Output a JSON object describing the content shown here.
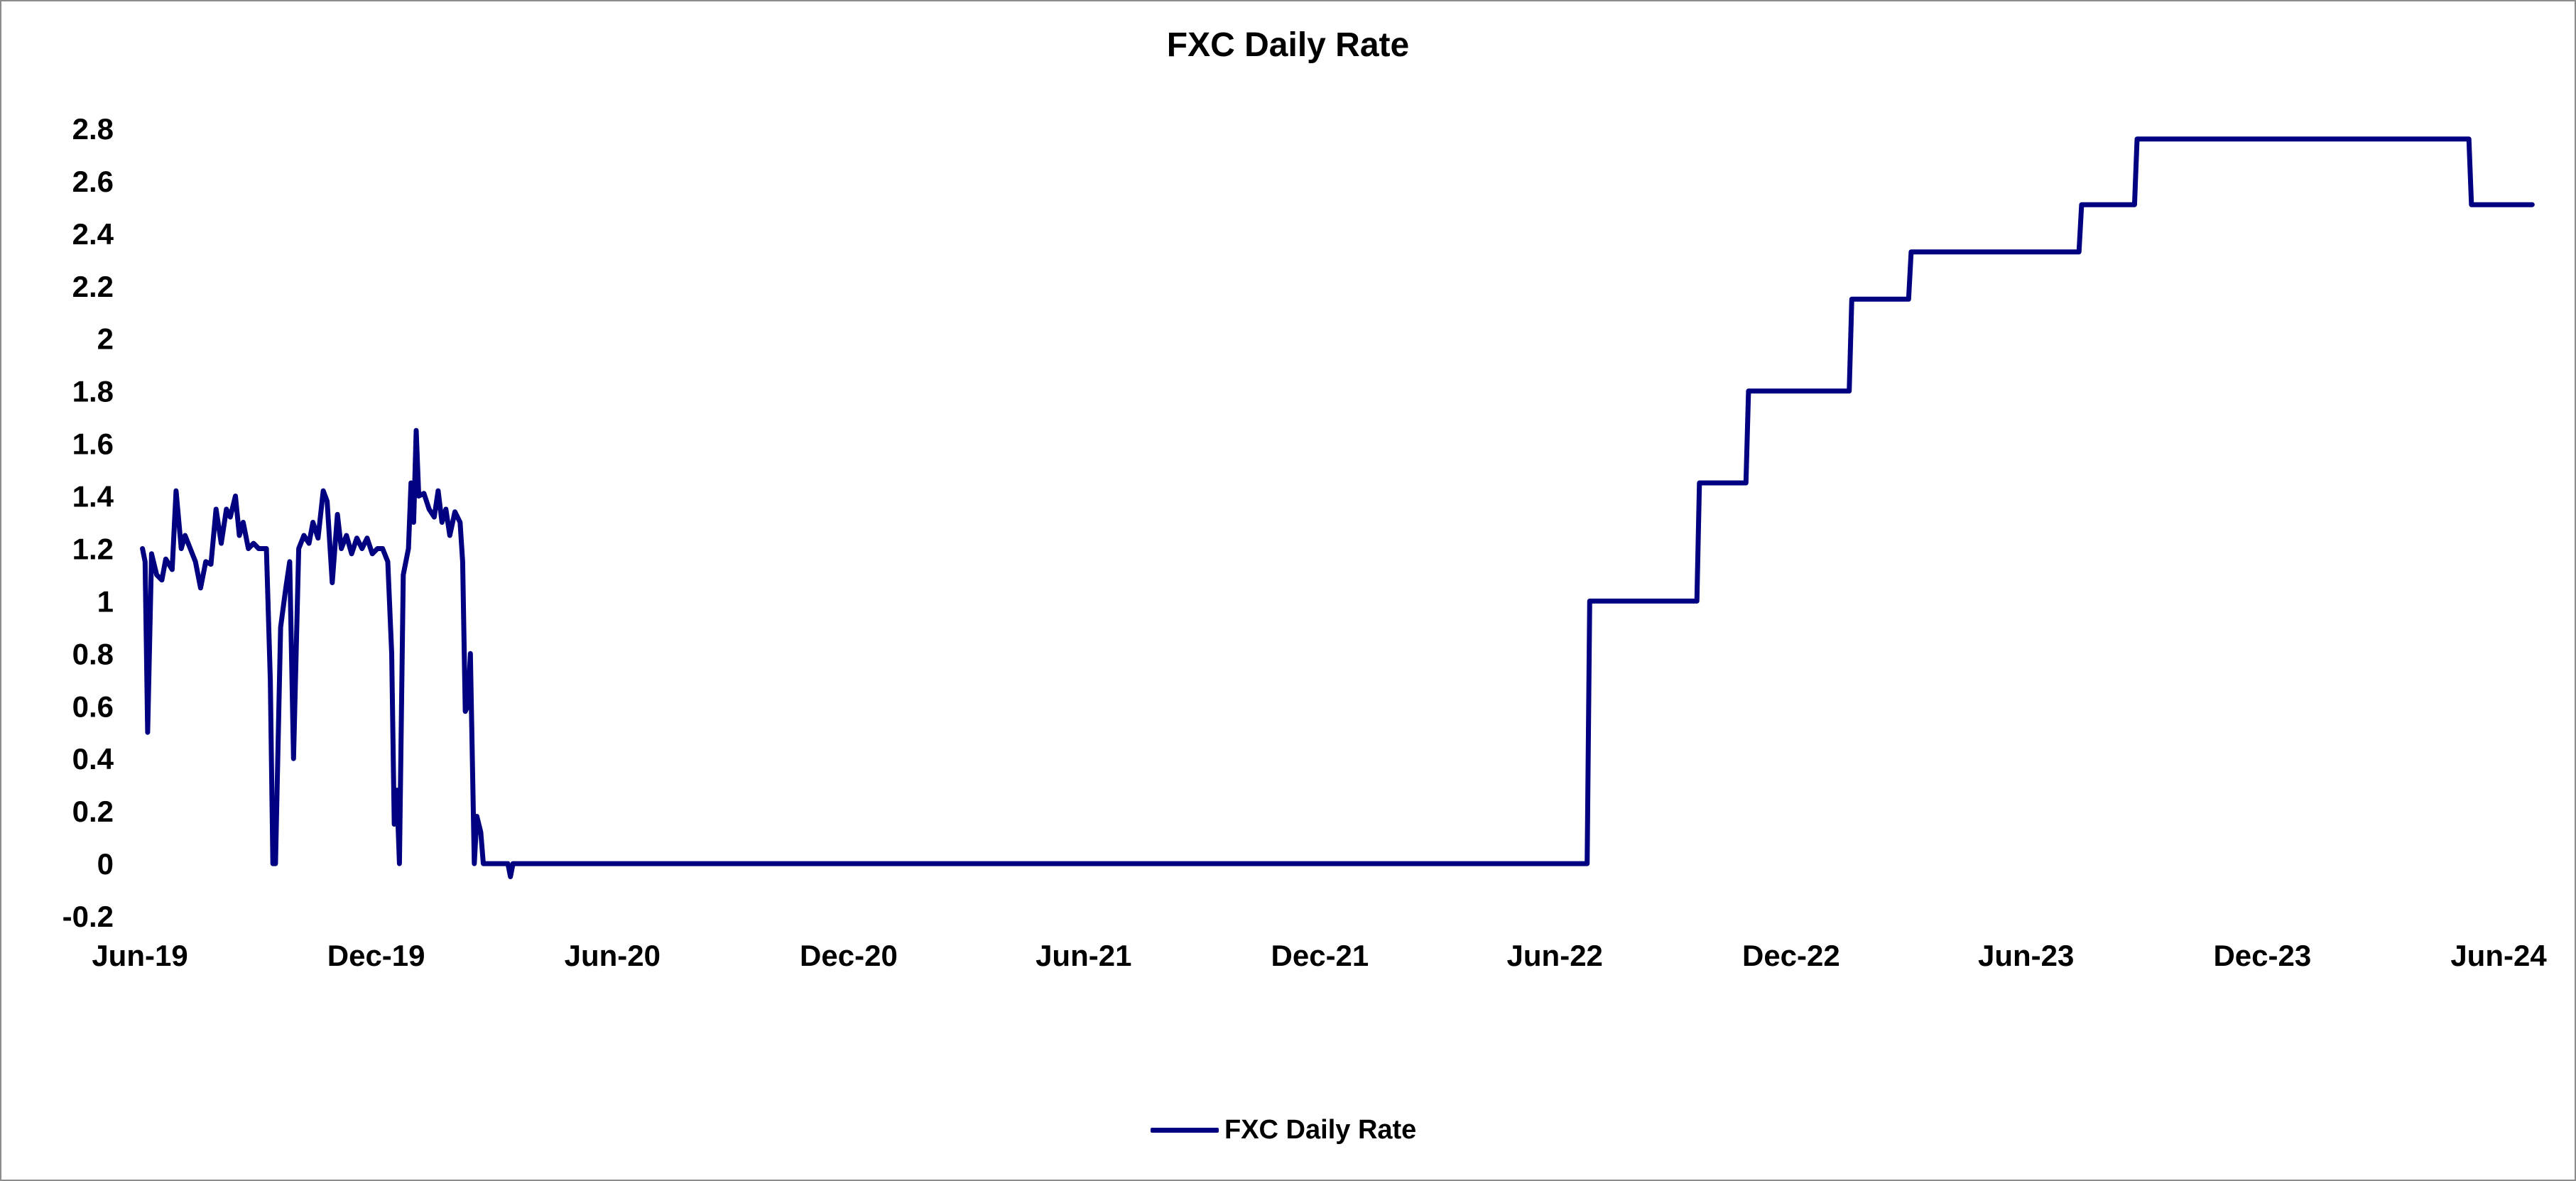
{
  "chart_data": {
    "type": "line",
    "title": "FXC Daily Rate",
    "xlabel": "",
    "ylabel": "",
    "x_tick_labels": [
      "Jun-19",
      "Dec-19",
      "Jun-20",
      "Dec-20",
      "Jun-21",
      "Dec-21",
      "Jun-22",
      "Dec-22",
      "Jun-23",
      "Dec-23",
      "Jun-24"
    ],
    "y_tick_labels": [
      "-0.2",
      "0",
      "0.2",
      "0.4",
      "0.6",
      "0.8",
      "1",
      "1.2",
      "1.4",
      "1.6",
      "1.8",
      "2",
      "2.2",
      "2.4",
      "2.6",
      "2.8"
    ],
    "xlim": [
      "2019-06",
      "2024-06"
    ],
    "ylim": [
      -0.2,
      2.9
    ],
    "grid": false,
    "legend_position": "bottom-center",
    "series": [
      {
        "name": "FXC Daily Rate",
        "color": "#000080",
        "points": [
          [
            "2019-06-03",
            1.2
          ],
          [
            "2019-06-05",
            1.15
          ],
          [
            "2019-06-07",
            0.5
          ],
          [
            "2019-06-10",
            1.18
          ],
          [
            "2019-06-14",
            1.1
          ],
          [
            "2019-06-18",
            1.08
          ],
          [
            "2019-06-21",
            1.16
          ],
          [
            "2019-06-26",
            1.12
          ],
          [
            "2019-06-29",
            1.42
          ],
          [
            "2019-07-03",
            1.2
          ],
          [
            "2019-07-06",
            1.25
          ],
          [
            "2019-07-10",
            1.2
          ],
          [
            "2019-07-14",
            1.15
          ],
          [
            "2019-07-18",
            1.05
          ],
          [
            "2019-07-22",
            1.15
          ],
          [
            "2019-07-26",
            1.14
          ],
          [
            "2019-07-30",
            1.35
          ],
          [
            "2019-08-03",
            1.22
          ],
          [
            "2019-08-07",
            1.35
          ],
          [
            "2019-08-10",
            1.32
          ],
          [
            "2019-08-14",
            1.4
          ],
          [
            "2019-08-17",
            1.25
          ],
          [
            "2019-08-20",
            1.3
          ],
          [
            "2019-08-24",
            1.2
          ],
          [
            "2019-08-28",
            1.22
          ],
          [
            "2019-09-01",
            1.2
          ],
          [
            "2019-09-07",
            1.2
          ],
          [
            "2019-09-10",
            0.7
          ],
          [
            "2019-09-12",
            0.0
          ],
          [
            "2019-09-14",
            0.0
          ],
          [
            "2019-09-18",
            0.9
          ],
          [
            "2019-09-22",
            1.05
          ],
          [
            "2019-09-25",
            1.15
          ],
          [
            "2019-09-28",
            0.4
          ],
          [
            "2019-10-02",
            1.2
          ],
          [
            "2019-10-06",
            1.25
          ],
          [
            "2019-10-10",
            1.22
          ],
          [
            "2019-10-13",
            1.3
          ],
          [
            "2019-10-17",
            1.24
          ],
          [
            "2019-10-21",
            1.42
          ],
          [
            "2019-10-24",
            1.38
          ],
          [
            "2019-10-28",
            1.07
          ],
          [
            "2019-11-01",
            1.33
          ],
          [
            "2019-11-04",
            1.2
          ],
          [
            "2019-11-08",
            1.25
          ],
          [
            "2019-11-12",
            1.18
          ],
          [
            "2019-11-16",
            1.24
          ],
          [
            "2019-11-20",
            1.2
          ],
          [
            "2019-11-24",
            1.24
          ],
          [
            "2019-11-28",
            1.18
          ],
          [
            "2019-12-02",
            1.2
          ],
          [
            "2019-12-06",
            1.2
          ],
          [
            "2019-12-10",
            1.15
          ],
          [
            "2019-12-13",
            0.8
          ],
          [
            "2019-12-15",
            0.15
          ],
          [
            "2019-12-17",
            0.28
          ],
          [
            "2019-12-19",
            0.0
          ],
          [
            "2019-12-22",
            1.1
          ],
          [
            "2019-12-26",
            1.2
          ],
          [
            "2019-12-28",
            1.45
          ],
          [
            "2019-12-30",
            1.3
          ],
          [
            "2020-01-01",
            1.65
          ],
          [
            "2020-01-03",
            1.4
          ],
          [
            "2020-01-07",
            1.41
          ],
          [
            "2020-01-11",
            1.35
          ],
          [
            "2020-01-15",
            1.32
          ],
          [
            "2020-01-18",
            1.42
          ],
          [
            "2020-01-21",
            1.3
          ],
          [
            "2020-01-24",
            1.35
          ],
          [
            "2020-01-27",
            1.25
          ],
          [
            "2020-01-31",
            1.34
          ],
          [
            "2020-02-04",
            1.3
          ],
          [
            "2020-02-06",
            1.15
          ],
          [
            "2020-02-08",
            0.58
          ],
          [
            "2020-02-10",
            0.6
          ],
          [
            "2020-02-12",
            0.8
          ],
          [
            "2020-02-15",
            0.0
          ],
          [
            "2020-02-17",
            0.18
          ],
          [
            "2020-02-20",
            0.12
          ],
          [
            "2020-02-22",
            0.0
          ],
          [
            "2020-03-12",
            0.0
          ],
          [
            "2020-03-14",
            -0.05
          ],
          [
            "2020-03-16",
            0.0
          ],
          [
            "2022-06-26",
            0.0
          ],
          [
            "2022-06-28",
            1.0
          ],
          [
            "2022-09-19",
            1.0
          ],
          [
            "2022-09-21",
            1.45
          ],
          [
            "2022-10-27",
            1.45
          ],
          [
            "2022-10-29",
            1.8
          ],
          [
            "2023-01-15",
            1.8
          ],
          [
            "2023-01-17",
            2.15
          ],
          [
            "2023-03-02",
            2.15
          ],
          [
            "2023-03-04",
            2.33
          ],
          [
            "2023-07-12",
            2.33
          ],
          [
            "2023-07-14",
            2.51
          ],
          [
            "2023-08-24",
            2.51
          ],
          [
            "2023-08-26",
            2.76
          ],
          [
            "2024-05-09",
            2.76
          ],
          [
            "2024-05-11",
            2.51
          ],
          [
            "2024-06-27",
            2.51
          ]
        ]
      }
    ]
  }
}
